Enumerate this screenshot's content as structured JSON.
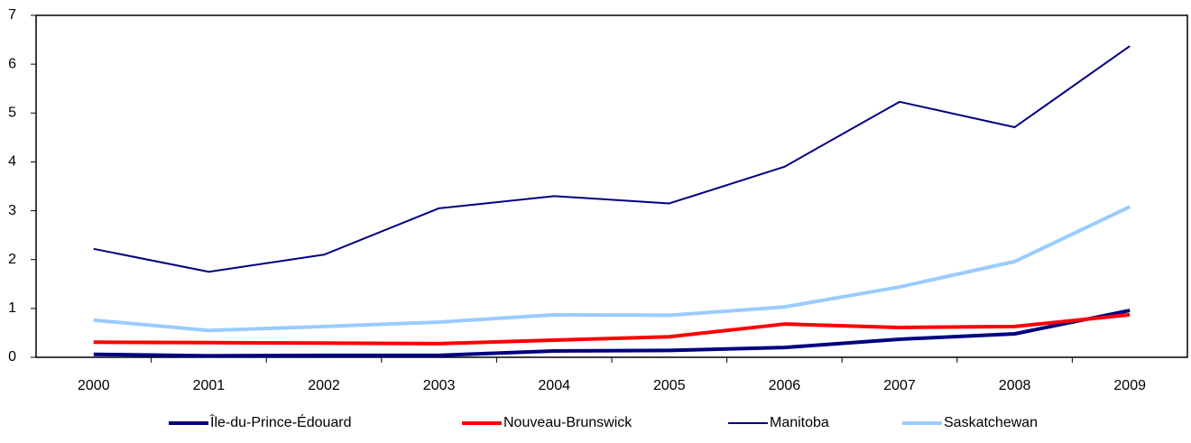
{
  "chart_data": {
    "type": "line",
    "categories": [
      "2000",
      "2001",
      "2002",
      "2003",
      "2004",
      "2005",
      "2006",
      "2007",
      "2008",
      "2009"
    ],
    "series": [
      {
        "name": "Île-du-Prince-Édouard",
        "color": "#000080",
        "values": [
          0.06,
          0.03,
          0.04,
          0.04,
          0.13,
          0.14,
          0.2,
          0.37,
          0.48,
          0.96
        ]
      },
      {
        "name": "Nouveau-Brunswick",
        "color": "#ff0000",
        "values": [
          0.31,
          0.3,
          0.29,
          0.28,
          0.35,
          0.42,
          0.68,
          0.61,
          0.63,
          0.87
        ]
      },
      {
        "name": "Manitoba",
        "color": "#000080",
        "values": [
          2.22,
          1.75,
          2.1,
          3.05,
          3.3,
          3.15,
          3.9,
          5.23,
          4.71,
          6.37
        ]
      },
      {
        "name": "Saskatchewan",
        "color": "#99ccff",
        "values": [
          0.76,
          0.55,
          0.63,
          0.72,
          0.87,
          0.86,
          1.03,
          1.44,
          1.96,
          3.08
        ]
      }
    ],
    "ylim": [
      0,
      7
    ],
    "yticks": [
      0,
      1,
      2,
      3,
      4,
      5,
      6,
      7
    ],
    "grid": false,
    "legend": "bottom"
  }
}
